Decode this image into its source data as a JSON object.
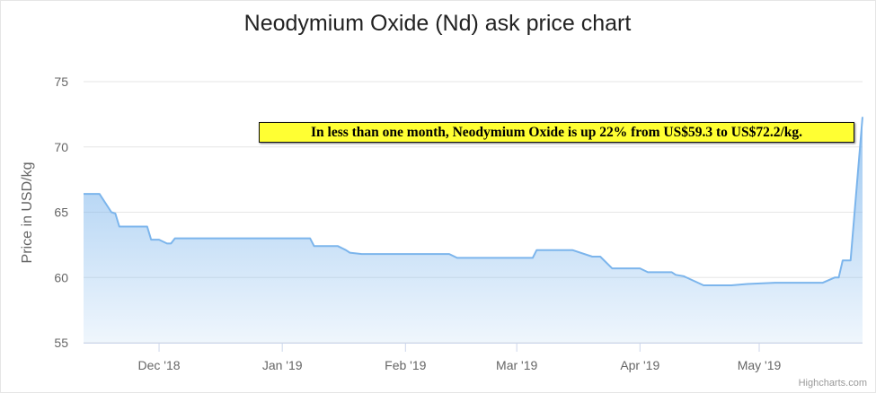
{
  "chart_data": {
    "type": "area",
    "title": "Neodymium Oxide (Nd) ask price chart",
    "xlabel": "",
    "ylabel": "Price in USD/kg",
    "ylim": [
      55,
      75
    ],
    "yticks": [
      55,
      60,
      65,
      70,
      75
    ],
    "xlim": [
      "2018-11-12",
      "2019-05-27"
    ],
    "xticks": [
      {
        "date": "2018-12-01",
        "label": "Dec '18"
      },
      {
        "date": "2019-01-01",
        "label": "Jan '19"
      },
      {
        "date": "2019-02-01",
        "label": "Feb '19"
      },
      {
        "date": "2019-03-01",
        "label": "Mar '19"
      },
      {
        "date": "2019-04-01",
        "label": "Apr '19"
      },
      {
        "date": "2019-05-01",
        "label": "May '19"
      }
    ],
    "grid": true,
    "legend": "none",
    "series": [
      {
        "name": "Neodymium Oxide (Nd)",
        "color": "#7cb5ec",
        "points": [
          [
            "2018-11-12",
            66.4
          ],
          [
            "2018-11-16",
            66.4
          ],
          [
            "2018-11-19",
            65.0
          ],
          [
            "2018-11-20",
            64.9
          ],
          [
            "2018-11-21",
            63.9
          ],
          [
            "2018-11-28",
            63.9
          ],
          [
            "2018-11-29",
            62.9
          ],
          [
            "2018-12-01",
            62.9
          ],
          [
            "2018-12-03",
            62.6
          ],
          [
            "2018-12-04",
            62.6
          ],
          [
            "2018-12-05",
            63.0
          ],
          [
            "2019-01-08",
            63.0
          ],
          [
            "2019-01-09",
            62.4
          ],
          [
            "2019-01-15",
            62.4
          ],
          [
            "2019-01-17",
            62.1
          ],
          [
            "2019-01-18",
            61.9
          ],
          [
            "2019-01-21",
            61.8
          ],
          [
            "2019-02-12",
            61.8
          ],
          [
            "2019-02-14",
            61.5
          ],
          [
            "2019-03-05",
            61.5
          ],
          [
            "2019-03-06",
            62.1
          ],
          [
            "2019-03-15",
            62.1
          ],
          [
            "2019-03-20",
            61.6
          ],
          [
            "2019-03-22",
            61.6
          ],
          [
            "2019-03-25",
            60.7
          ],
          [
            "2019-04-01",
            60.7
          ],
          [
            "2019-04-03",
            60.4
          ],
          [
            "2019-04-09",
            60.4
          ],
          [
            "2019-04-10",
            60.2
          ],
          [
            "2019-04-12",
            60.1
          ],
          [
            "2019-04-17",
            59.4
          ],
          [
            "2019-04-24",
            59.4
          ],
          [
            "2019-04-28",
            59.5
          ],
          [
            "2019-05-05",
            59.6
          ],
          [
            "2019-05-17",
            59.6
          ],
          [
            "2019-05-20",
            60.0
          ],
          [
            "2019-05-21",
            60.0
          ],
          [
            "2019-05-22",
            61.3
          ],
          [
            "2019-05-24",
            61.3
          ],
          [
            "2019-05-27",
            72.3
          ]
        ]
      }
    ],
    "annotations": [
      "In less than one month, Neodymium Oxide is up 22% from US$59.3 to US$72.2/kg."
    ],
    "credits": "Highcharts.com"
  }
}
